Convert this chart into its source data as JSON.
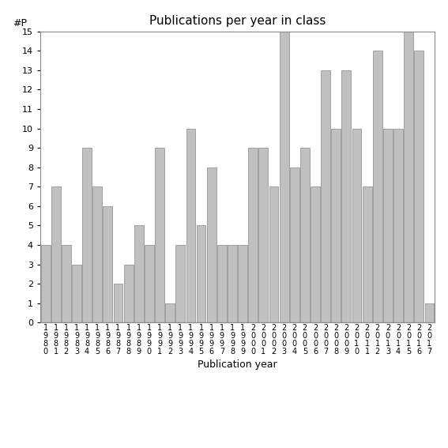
{
  "title": "Publications per year in class",
  "xlabel": "Publication year",
  "ylabel": "#P",
  "years": [
    "1980",
    "1981",
    "1982",
    "1983",
    "1984",
    "1985",
    "1986",
    "1987",
    "1988",
    "1989",
    "1990",
    "1991",
    "1992",
    "1993",
    "1994",
    "1995",
    "1996",
    "1997",
    "1998",
    "1999",
    "2000",
    "2001",
    "2002",
    "2003",
    "2004",
    "2005",
    "2006",
    "2007",
    "2008",
    "2009",
    "2010",
    "2011",
    "2012",
    "2013",
    "2014",
    "2015",
    "2016",
    "2017"
  ],
  "values": [
    4,
    7,
    4,
    3,
    9,
    7,
    6,
    2,
    3,
    5,
    4,
    9,
    1,
    4,
    10,
    5,
    8,
    4,
    4,
    4,
    9,
    9,
    7,
    15,
    8,
    9,
    7,
    13,
    10,
    13,
    10,
    7,
    14,
    10,
    10,
    15,
    14,
    1
  ],
  "bar_color": "#c0c0c0",
  "bar_edge_color": "#888888",
  "ylim": [
    0,
    15
  ],
  "yticks": [
    0,
    1,
    2,
    3,
    4,
    5,
    6,
    7,
    8,
    9,
    10,
    11,
    12,
    13,
    14,
    15
  ],
  "bg_color": "#ffffff",
  "title_fontsize": 11,
  "label_fontsize": 9,
  "tick_fontsize": 8
}
